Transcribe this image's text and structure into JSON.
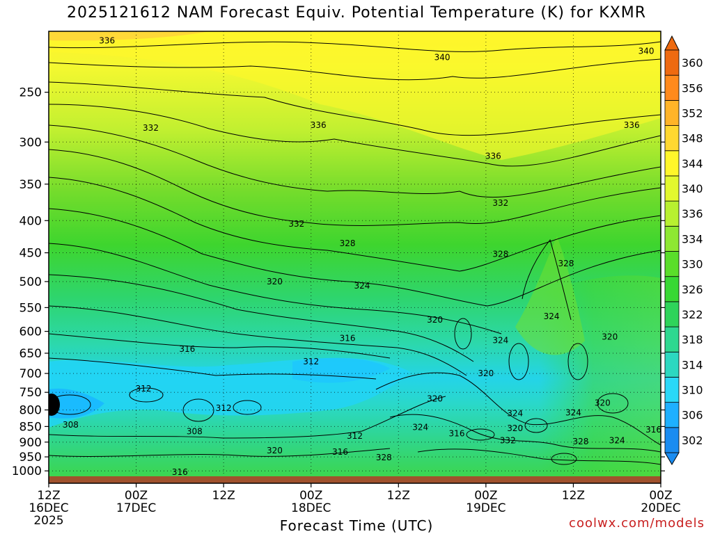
{
  "title": "2025121612 NAM Forecast Equiv. Potential Temperature (K) for KXMR",
  "credit": "coolwx.com/models",
  "chart_data": {
    "type": "heatmap",
    "title": "2025121612 NAM Forecast Equiv. Potential Temperature (K) for KXMR",
    "xlabel": "Forecast Time (UTC)",
    "ylabel": "",
    "y_scale": "log-pressure",
    "y_ticks": [
      250,
      300,
      350,
      400,
      450,
      500,
      550,
      600,
      650,
      700,
      750,
      800,
      850,
      900,
      950,
      1000
    ],
    "ylim": [
      1020,
      200
    ],
    "x_ticks": [
      {
        "hour": 0,
        "lines": [
          "12Z",
          "16DEC",
          "2025"
        ]
      },
      {
        "hour": 12,
        "lines": [
          "00Z",
          "17DEC"
        ]
      },
      {
        "hour": 24,
        "lines": [
          "12Z"
        ]
      },
      {
        "hour": 36,
        "lines": [
          "00Z",
          "18DEC"
        ]
      },
      {
        "hour": 48,
        "lines": [
          "12Z"
        ]
      },
      {
        "hour": 60,
        "lines": [
          "00Z",
          "19DEC"
        ]
      },
      {
        "hour": 72,
        "lines": [
          "12Z"
        ]
      },
      {
        "hour": 84,
        "lines": [
          "00Z",
          "20DEC"
        ]
      }
    ],
    "xlim": [
      0,
      84
    ],
    "grid": true,
    "colorbar": {
      "units": "K",
      "labels": [
        302,
        306,
        310,
        314,
        318,
        322,
        326,
        330,
        334,
        336,
        340,
        344,
        348,
        352,
        356,
        360
      ],
      "colors": [
        "#1a8cf0",
        "#1eb0ff",
        "#2ad8f8",
        "#2cd8c0",
        "#2ed890",
        "#2ed45a",
        "#38d834",
        "#5ade2a",
        "#8ee832",
        "#b8f030",
        "#e2f82e",
        "#fff62a",
        "#ffd830",
        "#ffb428",
        "#ff8a1c",
        "#ee6a10"
      ]
    },
    "contours": [
      {
        "theta": 340,
        "points": [
          [
            54,
            220
          ],
          [
            82,
            215
          ]
        ]
      },
      {
        "theta": 336,
        "points": [
          [
            8,
            207
          ],
          [
            37,
            282
          ],
          [
            61,
            316
          ],
          [
            80,
            282
          ]
        ]
      },
      {
        "theta": 332,
        "points": [
          [
            14,
            285
          ],
          [
            34,
            405
          ],
          [
            62,
            375
          ]
        ]
      },
      {
        "theta": 328,
        "points": [
          [
            41,
            435
          ],
          [
            62,
            452
          ],
          [
            71,
            468
          ]
        ]
      },
      {
        "theta": 324,
        "points": [
          [
            43,
            508
          ],
          [
            69,
            568
          ],
          [
            62,
            620
          ]
        ]
      },
      {
        "theta": 320,
        "points": [
          [
            31,
            500
          ],
          [
            53,
            575
          ],
          [
            60,
            700
          ],
          [
            77,
            612
          ],
          [
            53,
            768
          ],
          [
            64,
            856
          ],
          [
            31,
            928
          ]
        ]
      },
      {
        "theta": 316,
        "points": [
          [
            19,
            640
          ],
          [
            41,
            615
          ],
          [
            56,
            872
          ],
          [
            40,
            933
          ],
          [
            83,
            860
          ],
          [
            18,
            1005
          ]
        ]
      },
      {
        "theta": 312,
        "points": [
          [
            13,
            740
          ],
          [
            24,
            795
          ],
          [
            36,
            670
          ],
          [
            42,
            880
          ]
        ]
      },
      {
        "theta": 308,
        "points": [
          [
            3,
            845
          ],
          [
            20,
            865
          ]
        ]
      },
      {
        "theta": 328,
        "points": [
          [
            46,
            952
          ],
          [
            73,
            898
          ]
        ]
      },
      {
        "theta": 332,
        "points": [
          [
            63,
            895
          ]
        ]
      },
      {
        "theta": 324,
        "points": [
          [
            51,
            852
          ],
          [
            64,
            810
          ],
          [
            72,
            808
          ],
          [
            78,
            895
          ]
        ]
      },
      {
        "theta": 320,
        "points": [
          [
            76,
            780
          ]
        ]
      }
    ]
  }
}
